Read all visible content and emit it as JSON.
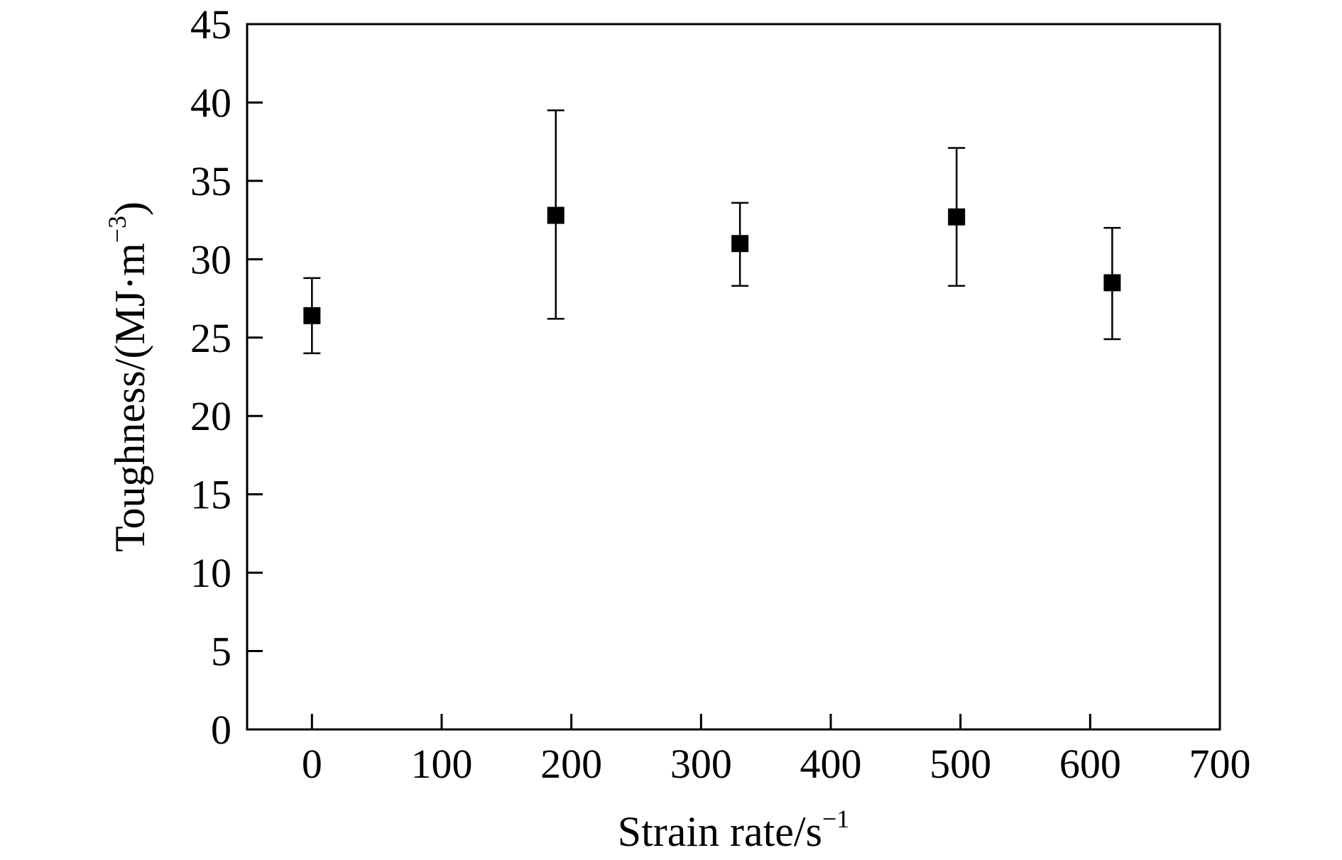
{
  "chart_data": {
    "type": "scatter",
    "title": "",
    "xlabel": {
      "text": "Strain rate/s",
      "sup": "−1"
    },
    "ylabel": {
      "text": "Toughness/(MJ·m",
      "sup": "−3",
      "close": ")"
    },
    "xlim": [
      -50,
      700
    ],
    "ylim": [
      0,
      45
    ],
    "xticks": [
      0,
      100,
      200,
      300,
      400,
      500,
      600,
      700
    ],
    "yticks": [
      0,
      5,
      10,
      15,
      20,
      25,
      30,
      35,
      40,
      45
    ],
    "grid": false,
    "legend": "none",
    "marker": "square",
    "color": "#000000",
    "points": [
      {
        "x": 0,
        "y": 26.4,
        "err_low": 24.0,
        "err_high": 28.8
      },
      {
        "x": 188,
        "y": 32.8,
        "err_low": 26.2,
        "err_high": 39.5
      },
      {
        "x": 330,
        "y": 31.0,
        "err_low": 28.3,
        "err_high": 33.6
      },
      {
        "x": 497,
        "y": 32.7,
        "err_low": 28.3,
        "err_high": 37.1
      },
      {
        "x": 617,
        "y": 28.5,
        "err_low": 24.9,
        "err_high": 32.0
      }
    ]
  }
}
